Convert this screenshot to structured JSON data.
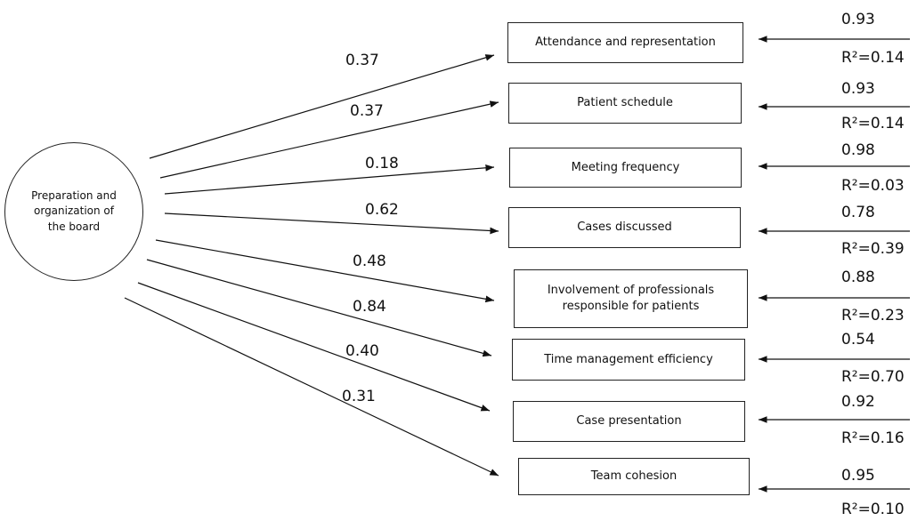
{
  "factor": {
    "label": "Preparation and organization of the board"
  },
  "nodes": [
    {
      "label": "Attendance and representation",
      "loading": "0.37",
      "error": "0.93",
      "r2": "R²=0.14"
    },
    {
      "label": "Patient schedule",
      "loading": "0.37",
      "error": "0.93",
      "r2": "R²=0.14"
    },
    {
      "label": "Meeting frequency",
      "loading": "0.18",
      "error": "0.98",
      "r2": "R²=0.03"
    },
    {
      "label": "Cases discussed",
      "loading": "0.62",
      "error": "0.78",
      "r2": "R²=0.39"
    },
    {
      "label": "Involvement of professionals responsible for patients",
      "loading": "0.48",
      "error": "0.88",
      "r2": "R²=0.23"
    },
    {
      "label": "Time management efficiency",
      "loading": "0.84",
      "error": "0.54",
      "r2": "R²=0.70"
    },
    {
      "label": "Case presentation",
      "loading": "0.40",
      "error": "0.92",
      "r2": "R²=0.16"
    },
    {
      "label": "Team cohesion",
      "loading": "0.31",
      "error": "0.95",
      "r2": "R²=0.10"
    }
  ]
}
